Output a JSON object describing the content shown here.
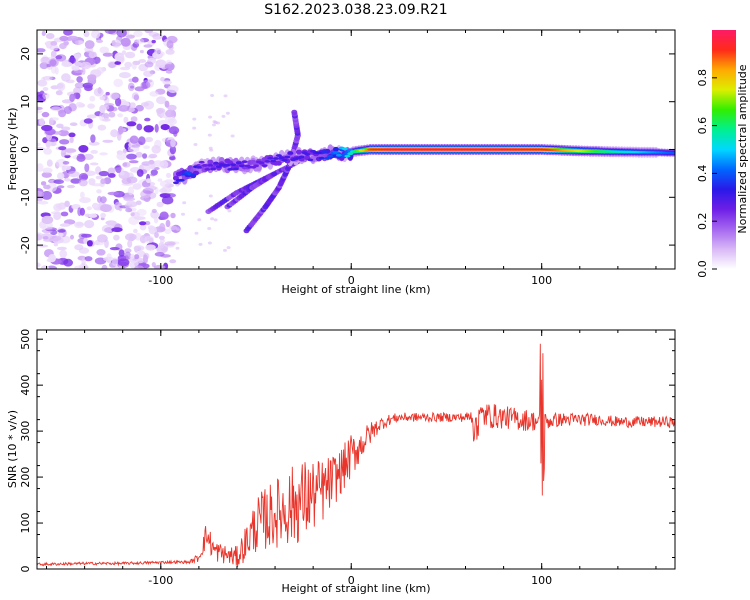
{
  "figure": {
    "title": "S162.2023.038.23.09.R21"
  },
  "colors": {
    "snr_line": "#e8342a",
    "axis": "#000000",
    "colormap": [
      "#ffffff",
      "#d9b8f7",
      "#a566f0",
      "#6e1fe6",
      "#2a19e8",
      "#0066ff",
      "#00d7ff",
      "#00f090",
      "#33ee00",
      "#ddee00",
      "#ffaa00",
      "#ff2a1a",
      "#ff1a66"
    ]
  },
  "chart_data": [
    {
      "type": "heatmap",
      "name": "spectrogram",
      "title": "S162.2023.038.23.09.R21",
      "xlabel": "Height of straight line (km)",
      "ylabel": "Frequency (Hz)",
      "xlim": [
        -165,
        170
      ],
      "ylim": [
        -25,
        25
      ],
      "xticks": [
        -100,
        0,
        100
      ],
      "yticks": [
        20,
        10,
        0,
        -10,
        -20
      ],
      "noise_region_x": [
        -165,
        -92
      ],
      "ridge": [
        {
          "x": -92,
          "f": -6,
          "amp": 0.3
        },
        {
          "x": -85,
          "f": -5,
          "amp": 0.4
        },
        {
          "x": -78,
          "f": -3.5,
          "amp": 0.25
        },
        {
          "x": -70,
          "f": -3,
          "amp": 0.3
        },
        {
          "x": -60,
          "f": -3.5,
          "amp": 0.3
        },
        {
          "x": -50,
          "f": -3,
          "amp": 0.25
        },
        {
          "x": -40,
          "f": -2,
          "amp": 0.3
        },
        {
          "x": -30,
          "f": -1.5,
          "amp": 0.3
        },
        {
          "x": -20,
          "f": -1.2,
          "amp": 0.3
        },
        {
          "x": -10,
          "f": -0.8,
          "amp": 0.4
        },
        {
          "x": 0,
          "f": -0.5,
          "amp": 0.55
        },
        {
          "x": 10,
          "f": 0,
          "amp": 0.9
        },
        {
          "x": 20,
          "f": 0,
          "amp": 1.0
        },
        {
          "x": 40,
          "f": 0,
          "amp": 1.0
        },
        {
          "x": 60,
          "f": 0,
          "amp": 1.0
        },
        {
          "x": 80,
          "f": 0,
          "amp": 1.0
        },
        {
          "x": 100,
          "f": 0,
          "amp": 0.95
        },
        {
          "x": 120,
          "f": -0.3,
          "amp": 0.75
        },
        {
          "x": 140,
          "f": -0.5,
          "amp": 0.55
        },
        {
          "x": 160,
          "f": -0.6,
          "amp": 0.45
        },
        {
          "x": 170,
          "f": -0.7,
          "amp": 0.4
        }
      ],
      "branches": [
        [
          {
            "x": -75,
            "f": -13
          },
          {
            "x": -60,
            "f": -9
          },
          {
            "x": -45,
            "f": -6
          },
          {
            "x": -30,
            "f": -3
          },
          {
            "x": -22,
            "f": -1
          }
        ],
        [
          {
            "x": -55,
            "f": -17
          },
          {
            "x": -45,
            "f": -12
          },
          {
            "x": -38,
            "f": -8
          },
          {
            "x": -32,
            "f": -3
          },
          {
            "x": -28,
            "f": 3
          },
          {
            "x": -30,
            "f": 8
          }
        ],
        [
          {
            "x": -65,
            "f": -12
          },
          {
            "x": -52,
            "f": -8
          },
          {
            "x": -40,
            "f": -5
          }
        ]
      ]
    },
    {
      "type": "colorbar",
      "name": "amplitude-colorbar",
      "label": "Normalized spectral amplitude",
      "range": [
        0,
        1
      ],
      "ticks": [
        "0.0",
        "0.2",
        "0.4",
        "0.6",
        "0.8"
      ]
    },
    {
      "type": "line",
      "name": "snr",
      "xlabel": "Height of straight line (km)",
      "ylabel": "SNR (10 * v/v)",
      "xlim": [
        -165,
        170
      ],
      "ylim": [
        0,
        520
      ],
      "xticks": [
        -100,
        0,
        100
      ],
      "yticks": [
        0,
        100,
        200,
        300,
        400,
        500
      ],
      "x": [
        -165,
        -140,
        -120,
        -95,
        -85,
        -80,
        -76,
        -72,
        -65,
        -60,
        -55,
        -50,
        -45,
        -40,
        -35,
        -30,
        -25,
        -20,
        -15,
        -10,
        -5,
        0,
        5,
        10,
        15,
        20,
        25,
        30,
        40,
        50,
        60,
        70,
        80,
        90,
        100,
        110,
        120,
        130,
        140,
        150,
        160,
        170
      ],
      "y": [
        10,
        12,
        12,
        15,
        15,
        25,
        75,
        40,
        30,
        25,
        60,
        95,
        110,
        120,
        130,
        140,
        150,
        160,
        170,
        190,
        215,
        245,
        270,
        295,
        315,
        325,
        330,
        330,
        330,
        330,
        330,
        335,
        330,
        325,
        320,
        325,
        325,
        325,
        320,
        320,
        320,
        320
      ],
      "noise": [
        3,
        3,
        3,
        3,
        3,
        10,
        30,
        25,
        20,
        25,
        40,
        60,
        70,
        75,
        80,
        90,
        90,
        80,
        70,
        60,
        50,
        50,
        35,
        25,
        15,
        12,
        10,
        10,
        10,
        10,
        10,
        30,
        25,
        25,
        20,
        15,
        15,
        12,
        12,
        12,
        12,
        12
      ]
    }
  ]
}
